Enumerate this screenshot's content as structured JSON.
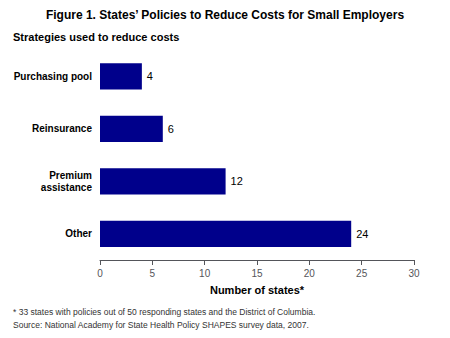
{
  "chart_data": {
    "type": "bar",
    "orientation": "horizontal",
    "title": "Figure 1. States’ Policies to Reduce Costs for Small Employers",
    "subtitle": "Strategies used to reduce costs",
    "categories": [
      "Other",
      "Premium\nassistance",
      "Reinsurance",
      "Purchasing pool"
    ],
    "values": [
      24,
      12,
      6,
      4
    ],
    "color": "#00008B",
    "xlabel": "Number of states*",
    "xlim": [
      0,
      30
    ],
    "xticks": [
      0,
      5,
      10,
      15,
      20,
      25,
      30
    ],
    "data_labels": true,
    "grid": false,
    "annotations": [
      "* 33 states with policies out of 50 responding states and the District of Columbia.",
      "Source: National Academy for State Health Policy SHAPES survey data, 2007."
    ]
  }
}
